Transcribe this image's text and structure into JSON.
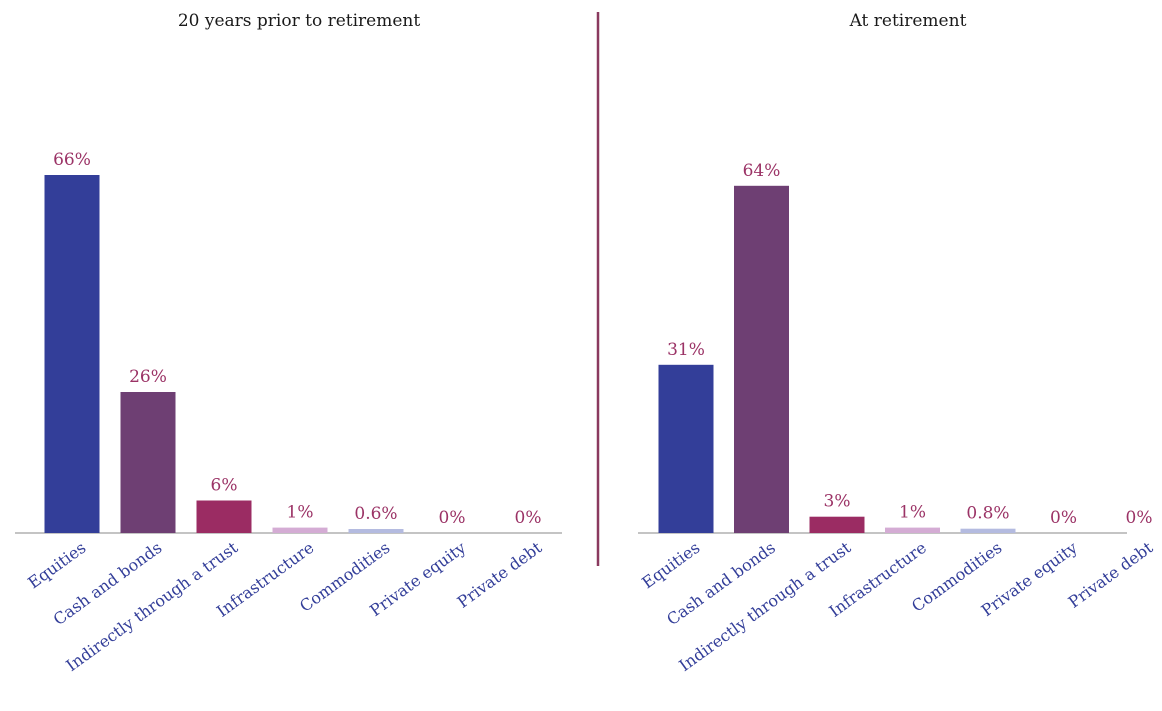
{
  "colors": {
    "label": "#9b3366",
    "category": "#333e99",
    "axis": "#888888",
    "divider": "#8a3a5f"
  },
  "chart_data": [
    {
      "type": "bar",
      "title": "20 years prior to retirement",
      "categories": [
        "Equities",
        "Cash and bonds",
        "Indirectly through a trust",
        "Infrastructure",
        "Commodities",
        "Private equity",
        "Private debt"
      ],
      "values": [
        66,
        26,
        6,
        1,
        0.6,
        0,
        0
      ],
      "value_labels": [
        "66%",
        "26%",
        "6%",
        "1%",
        "0.6%",
        "0%",
        "0%"
      ],
      "colors": [
        "#333e99",
        "#6e3f73",
        "#9b2c63",
        "#d4acd4",
        "#b4bbe0",
        "#c8c8c8",
        "#c8c8c8"
      ],
      "ylim": [
        0,
        70
      ],
      "grid": false
    },
    {
      "type": "bar",
      "title": "At retirement",
      "categories": [
        "Equities",
        "Cash and bonds",
        "Indirectly through a trust",
        "Infrastructure",
        "Commodities",
        "Private equity",
        "Private debt"
      ],
      "values": [
        31,
        64,
        3,
        1,
        0.8,
        0,
        0
      ],
      "value_labels": [
        "31%",
        "64%",
        "3%",
        "1%",
        "0.8%",
        "0%",
        "0%"
      ],
      "colors": [
        "#333e99",
        "#6e3f73",
        "#9b2c63",
        "#d4acd4",
        "#b4bbe0",
        "#c8c8c8",
        "#c8c8c8"
      ],
      "ylim": [
        0,
        70
      ],
      "grid": false
    }
  ]
}
